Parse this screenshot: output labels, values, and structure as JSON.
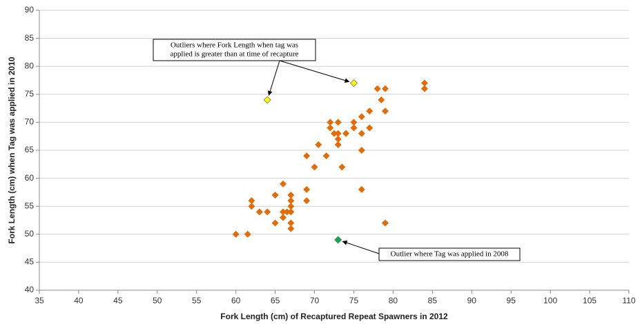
{
  "chart_data": {
    "type": "scatter",
    "x_label": "Fork Length (cm) of Recaptured Repeat Spawners in 2012",
    "y_label": "Fork Length (cm) when Tag was applied in 2010",
    "xlim": [
      35,
      110
    ],
    "xticks": [
      35,
      40,
      45,
      50,
      55,
      60,
      65,
      70,
      75,
      80,
      85,
      90,
      95,
      100,
      105,
      110
    ],
    "ylim": [
      40,
      90
    ],
    "yticks": [
      40,
      45,
      50,
      55,
      60,
      65,
      70,
      75,
      80,
      85,
      90
    ],
    "grid": true,
    "series": [
      {
        "color": "#e36c0a",
        "x": [
          60,
          61.5,
          62,
          62,
          63,
          64,
          65,
          65,
          66,
          66,
          66,
          66.5,
          67,
          67,
          67,
          67,
          67,
          67,
          69,
          69,
          69,
          70,
          70.5,
          71.5,
          72,
          72,
          72.5,
          73,
          73,
          73,
          73,
          73.5,
          74,
          75,
          75,
          76,
          76,
          76,
          76,
          77,
          77,
          78,
          78.5,
          79,
          79,
          79,
          84,
          84
        ],
        "values": [
          50,
          50,
          56,
          55,
          54,
          54,
          57,
          52,
          59,
          54,
          53,
          54,
          57,
          56,
          55,
          54,
          52,
          51,
          64,
          58,
          56,
          62,
          66,
          64,
          70,
          69,
          68,
          70,
          68,
          67,
          66,
          62,
          68,
          70,
          69,
          71,
          68,
          65,
          58,
          72,
          69,
          76,
          74,
          76,
          72,
          52,
          77,
          76
        ]
      },
      {
        "color": "#ffff00",
        "x": [
          64,
          75
        ],
        "values": [
          74,
          77
        ]
      },
      {
        "color": "#00b050",
        "x": [
          73
        ],
        "values": [
          49
        ]
      }
    ],
    "annotations": [
      {
        "lines": [
          "Outliers where Fork Length when tag was",
          "applied is greater than at time of recapture"
        ]
      },
      {
        "lines": [
          "Outlier where Tag was applied in 2008"
        ]
      }
    ]
  }
}
